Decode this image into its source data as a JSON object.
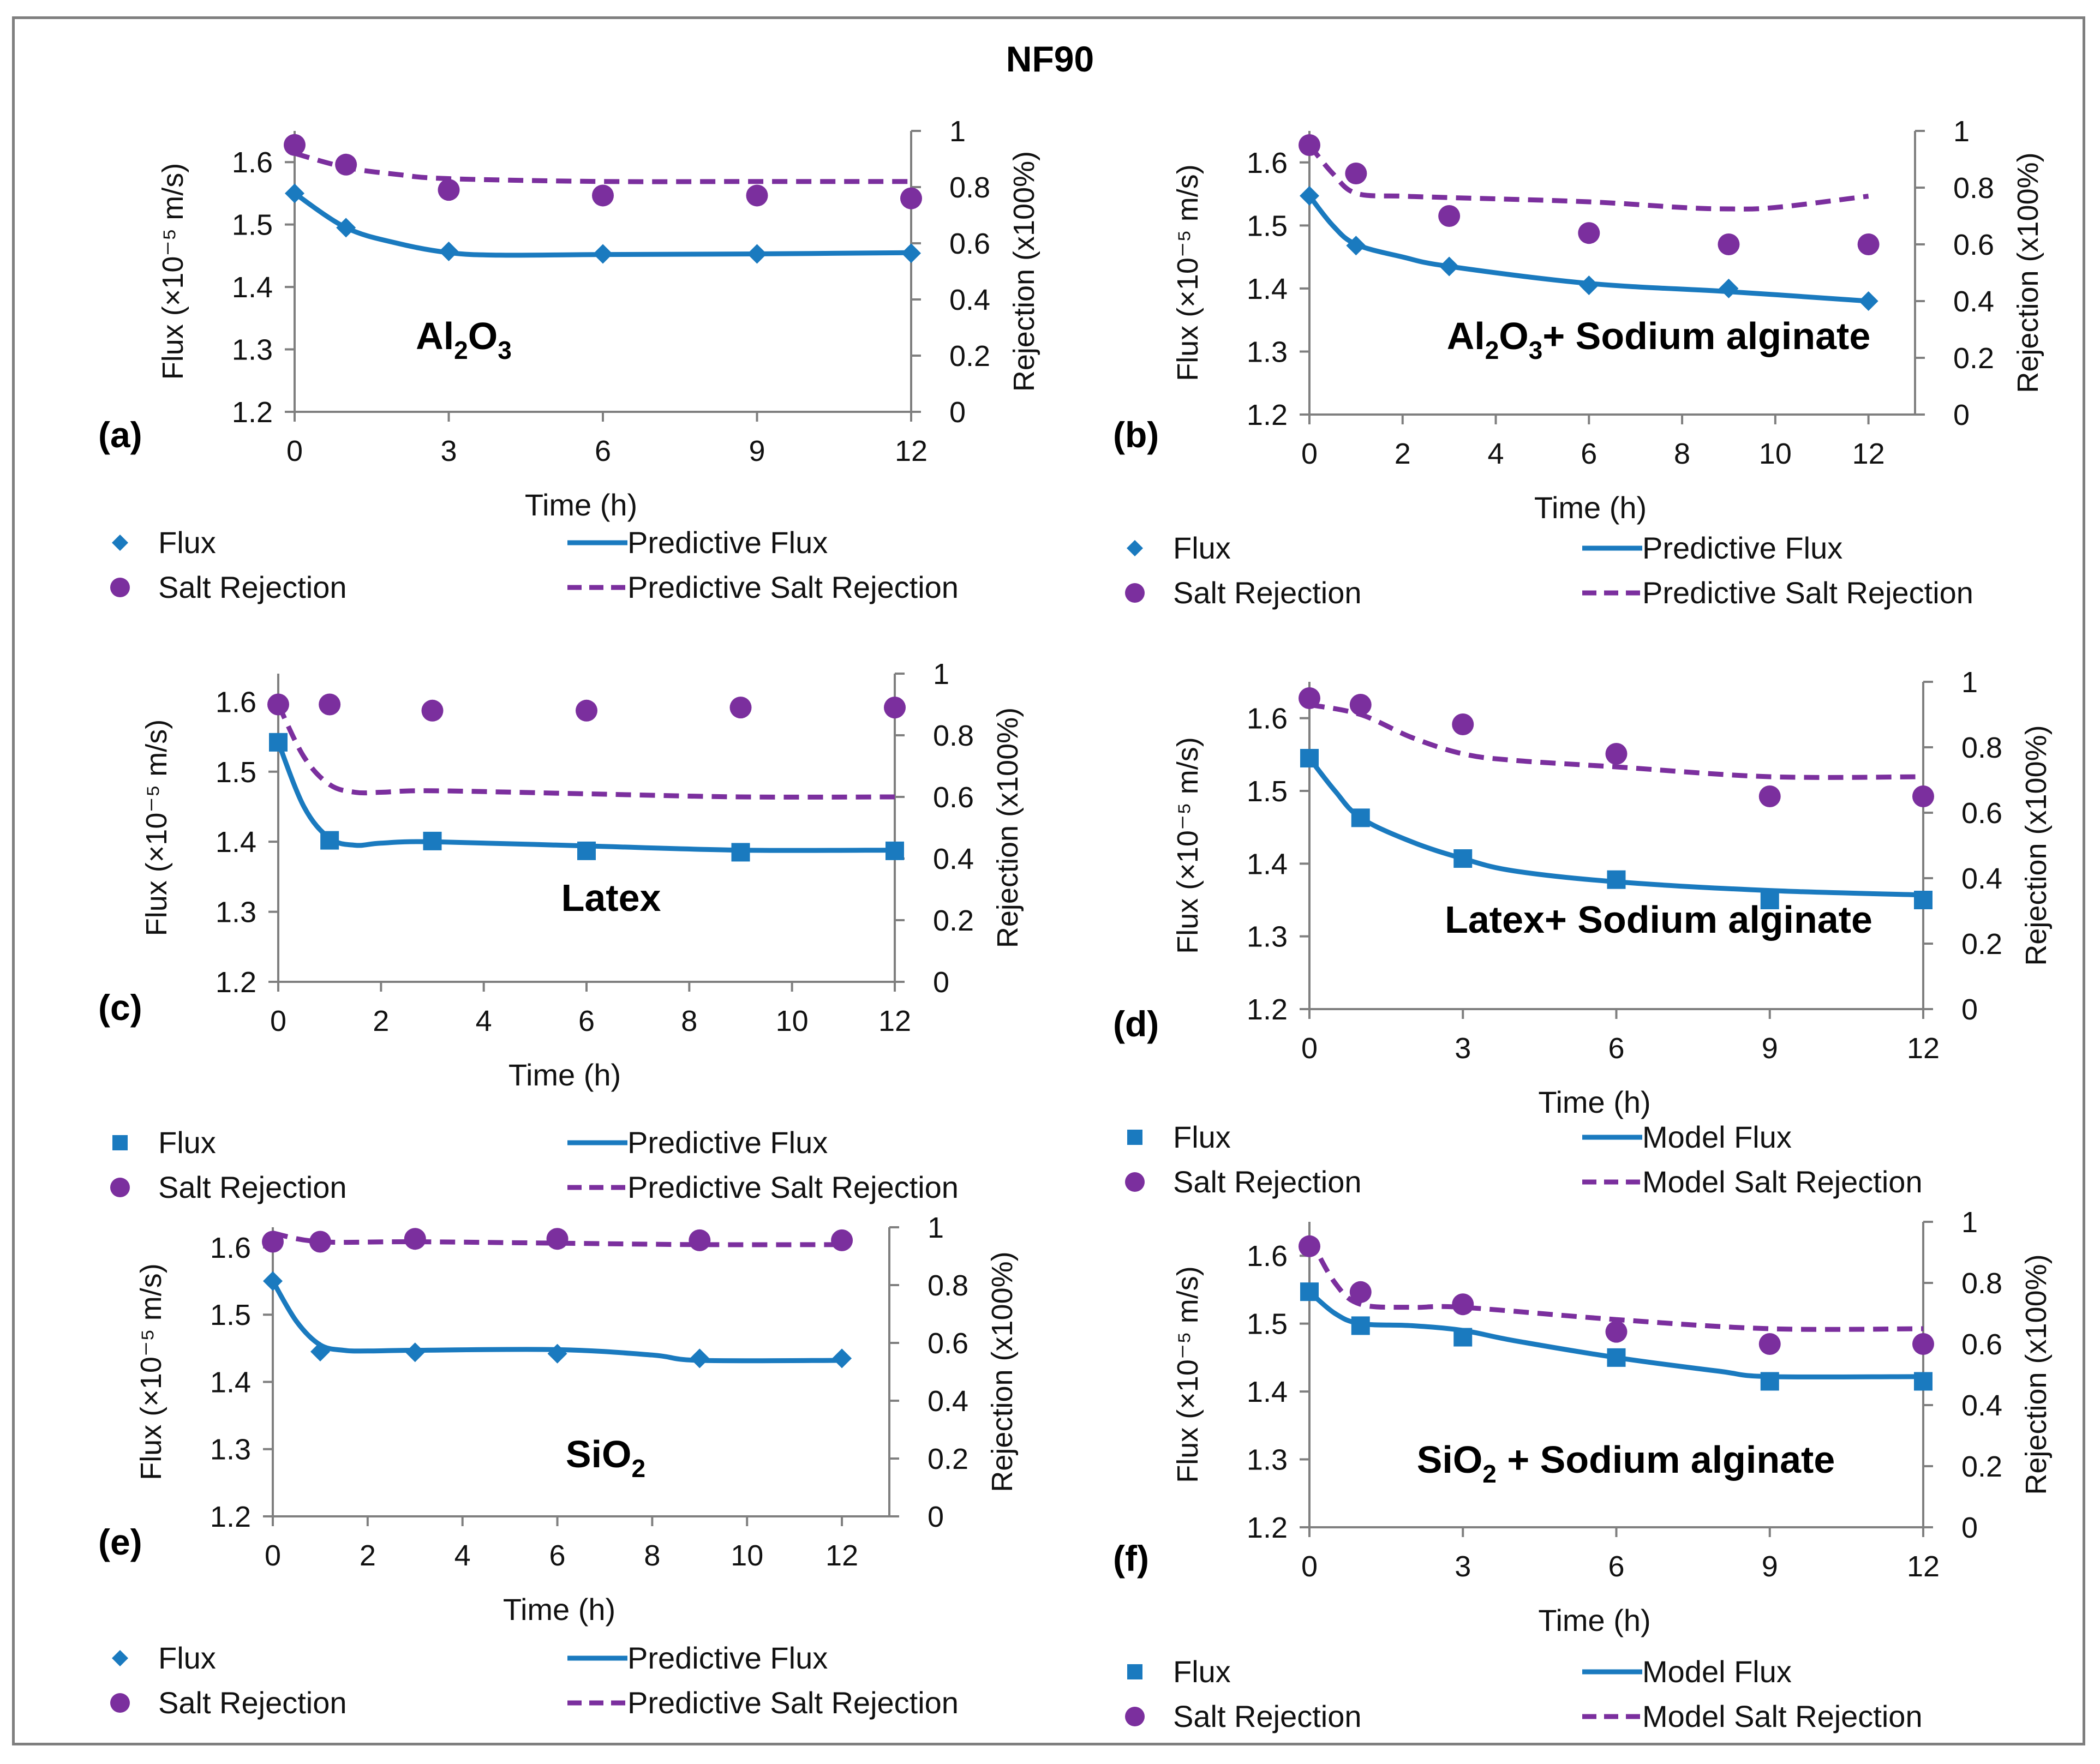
{
  "figure_title": "NF90",
  "colors": {
    "flux": "#1a7abf",
    "rejection": "#7b2f9e",
    "axis": "#7f7f7f"
  },
  "chart_data": [
    {
      "id": "a",
      "type": "scatter",
      "panel_label": "(a)",
      "inset_title": "Al2O3",
      "inset_title_parts": [
        "Al",
        "2",
        "O",
        "3"
      ],
      "xlabel": "Time (h)",
      "ylabel_left": "Flux (×10⁻⁵ m/s)",
      "ylabel_right": "Rejection (x100%)",
      "xlim": [
        0,
        12
      ],
      "xticks": [
        "0",
        "3",
        "6",
        "9",
        "12"
      ],
      "ylim_left": [
        1.2,
        1.65
      ],
      "yticks_left": [
        "1.2",
        "1.3",
        "1.4",
        "1.5",
        "1.6"
      ],
      "ylim_right": [
        0,
        1
      ],
      "yticks_right": [
        "0",
        "0.2",
        "0.4",
        "0.6",
        "0.8",
        "1"
      ],
      "flux_marker": "diamond",
      "series": [
        {
          "name": "Flux",
          "kind": "flux-points",
          "x": [
            0,
            1,
            3,
            6,
            9,
            12
          ],
          "y": [
            1.55,
            1.495,
            1.457,
            1.453,
            1.453,
            1.454
          ]
        },
        {
          "name": "Predictive Flux",
          "kind": "flux-line",
          "x": [
            0,
            1,
            2,
            3,
            4,
            6,
            9,
            12
          ],
          "y": [
            1.55,
            1.495,
            1.47,
            1.455,
            1.451,
            1.452,
            1.453,
            1.455
          ]
        },
        {
          "name": "Salt Rejection",
          "kind": "rej-points",
          "x": [
            0,
            1,
            3,
            6,
            9,
            12
          ],
          "y": [
            0.95,
            0.88,
            0.79,
            0.77,
            0.77,
            0.76
          ]
        },
        {
          "name": "Predictive Salt Rejection",
          "kind": "rej-line",
          "x": [
            0,
            1,
            2,
            3,
            6,
            9,
            12
          ],
          "y": [
            0.92,
            0.87,
            0.845,
            0.83,
            0.82,
            0.82,
            0.82
          ]
        }
      ],
      "legend": [
        "Flux",
        "Predictive Flux",
        "Salt Rejection",
        "Predictive Salt Rejection"
      ]
    },
    {
      "id": "b",
      "type": "scatter",
      "panel_label": "(b)",
      "inset_title": "Al2O3+ Sodium alginate",
      "inset_title_parts": [
        "Al",
        "2",
        "O",
        "3",
        "+ Sodium alginate"
      ],
      "xlabel": "Time (h)",
      "ylabel_left": "Flux (×10⁻⁵ m/s)",
      "ylabel_right": "Rejection (x100%)",
      "xlim": [
        0,
        13
      ],
      "xticks": [
        "0",
        "2",
        "4",
        "6",
        "8",
        "10",
        "12"
      ],
      "ylim_left": [
        1.2,
        1.65
      ],
      "yticks_left": [
        "1.2",
        "1.3",
        "1.4",
        "1.5",
        "1.6"
      ],
      "ylim_right": [
        0,
        1
      ],
      "yticks_right": [
        "0",
        "0.2",
        "0.4",
        "0.6",
        "0.8",
        "1"
      ],
      "flux_marker": "diamond",
      "series": [
        {
          "name": "Flux",
          "kind": "flux-points",
          "x": [
            0,
            1,
            3,
            6,
            9,
            12
          ],
          "y": [
            1.547,
            1.468,
            1.435,
            1.405,
            1.4,
            1.38
          ]
        },
        {
          "name": "Predictive Flux",
          "kind": "flux-line",
          "x": [
            0,
            0.5,
            1,
            2,
            3,
            6,
            9,
            12
          ],
          "y": [
            1.547,
            1.5,
            1.47,
            1.45,
            1.435,
            1.408,
            1.395,
            1.38
          ]
        },
        {
          "name": "Salt Rejection",
          "kind": "rej-points",
          "x": [
            0,
            1,
            3,
            6,
            9,
            12
          ],
          "y": [
            0.95,
            0.85,
            0.7,
            0.64,
            0.6,
            0.6
          ]
        },
        {
          "name": "Predictive Salt Rejection",
          "kind": "rej-line",
          "x": [
            0,
            0.5,
            1,
            2,
            3,
            6,
            8,
            9,
            10,
            12
          ],
          "y": [
            0.95,
            0.85,
            0.78,
            0.77,
            0.765,
            0.75,
            0.73,
            0.725,
            0.73,
            0.77
          ]
        }
      ],
      "legend": [
        "Flux",
        "Predictive Flux",
        "Salt Rejection",
        "Predictive Salt Rejection"
      ]
    },
    {
      "id": "c",
      "type": "scatter",
      "panel_label": "(c)",
      "inset_title": "Latex",
      "inset_title_parts": [
        "Latex"
      ],
      "xlabel": "Time (h)",
      "ylabel_left": "Flux (×10⁻⁵ m/s)",
      "ylabel_right": "Rejection (x100%)",
      "xlim": [
        0,
        12
      ],
      "xticks": [
        "0",
        "2",
        "4",
        "6",
        "8",
        "10",
        "12"
      ],
      "ylim_left": [
        1.2,
        1.64
      ],
      "yticks_left": [
        "1.2",
        "1.3",
        "1.4",
        "1.5",
        "1.6"
      ],
      "ylim_right": [
        0,
        1
      ],
      "yticks_right": [
        "0",
        "0.2",
        "0.4",
        "0.6",
        "0.8",
        "1"
      ],
      "flux_marker": "square",
      "series": [
        {
          "name": "Flux",
          "kind": "flux-points",
          "x": [
            0,
            1,
            3,
            6,
            9,
            12
          ],
          "y": [
            1.542,
            1.402,
            1.401,
            1.387,
            1.385,
            1.387
          ]
        },
        {
          "name": "Predictive Flux",
          "kind": "flux-line",
          "x": [
            0,
            0.5,
            1,
            1.5,
            2,
            3,
            6,
            9,
            12
          ],
          "y": [
            1.542,
            1.45,
            1.405,
            1.395,
            1.398,
            1.4,
            1.394,
            1.388,
            1.388
          ]
        },
        {
          "name": "Salt Rejection",
          "kind": "rej-points",
          "x": [
            0,
            1,
            3,
            6,
            9,
            12
          ],
          "y": [
            0.9,
            0.9,
            0.88,
            0.88,
            0.89,
            0.89
          ]
        },
        {
          "name": "Predictive Salt Rejection",
          "kind": "rej-line",
          "x": [
            0,
            0.5,
            1,
            1.5,
            2,
            3,
            6,
            9,
            12
          ],
          "y": [
            0.9,
            0.73,
            0.64,
            0.615,
            0.615,
            0.62,
            0.61,
            0.6,
            0.6
          ]
        }
      ],
      "legend": [
        "Flux",
        "Predictive Flux",
        "Salt Rejection",
        "Predictive Salt Rejection"
      ]
    },
    {
      "id": "d",
      "type": "scatter",
      "panel_label": "(d)",
      "inset_title": "Latex+ Sodium alginate",
      "inset_title_parts": [
        "Latex+ Sodium alginate"
      ],
      "xlabel": "Time (h)",
      "ylabel_left": "Flux (×10⁻⁵ m/s)",
      "ylabel_right": "Rejection (x100%)",
      "xlim": [
        0,
        12
      ],
      "xticks": [
        "0",
        "3",
        "6",
        "9",
        "12"
      ],
      "ylim_left": [
        1.2,
        1.65
      ],
      "yticks_left": [
        "1.2",
        "1.3",
        "1.4",
        "1.5",
        "1.6"
      ],
      "ylim_right": [
        0,
        1
      ],
      "yticks_right": [
        "0",
        "0.2",
        "0.4",
        "0.6",
        "0.8",
        "1"
      ],
      "flux_marker": "square",
      "series": [
        {
          "name": "Flux",
          "kind": "flux-points",
          "x": [
            0,
            1,
            3,
            6,
            9,
            12
          ],
          "y": [
            1.545,
            1.463,
            1.407,
            1.378,
            1.35,
            1.35
          ]
        },
        {
          "name": "Predictive Flux",
          "kind": "flux-line",
          "x": [
            0,
            0.5,
            1,
            2,
            3,
            4,
            6,
            9,
            12
          ],
          "y": [
            1.545,
            1.5,
            1.463,
            1.43,
            1.407,
            1.39,
            1.375,
            1.363,
            1.357
          ]
        },
        {
          "name": "Salt Rejection",
          "kind": "rej-points",
          "x": [
            0,
            1,
            3,
            6,
            9,
            12
          ],
          "y": [
            0.95,
            0.93,
            0.87,
            0.78,
            0.65,
            0.65
          ]
        },
        {
          "name": "Predictive Salt Rejection",
          "kind": "rej-line",
          "x": [
            0,
            1,
            2,
            3,
            4,
            6,
            9,
            12
          ],
          "y": [
            0.93,
            0.9,
            0.83,
            0.78,
            0.76,
            0.74,
            0.71,
            0.71
          ]
        }
      ],
      "legend": [
        "Flux",
        "Model Flux",
        "Salt Rejection",
        "Model Salt Rejection"
      ]
    },
    {
      "id": "e",
      "type": "scatter",
      "panel_label": "(e)",
      "inset_title": "SiO2",
      "inset_title_parts": [
        "SiO",
        "2"
      ],
      "xlabel": "Time (h)",
      "ylabel_left": "Flux (×10⁻⁵ m/s)",
      "ylabel_right": "Rejection (x100%)",
      "xlim": [
        0,
        13
      ],
      "xticks": [
        "0",
        "2",
        "4",
        "6",
        "8",
        "10",
        "12"
      ],
      "ylim_left": [
        1.2,
        1.63
      ],
      "yticks_left": [
        "1.2",
        "1.3",
        "1.4",
        "1.5",
        "1.6"
      ],
      "ylim_right": [
        0,
        1
      ],
      "yticks_right": [
        "0",
        "0.2",
        "0.4",
        "0.6",
        "0.8",
        "1"
      ],
      "flux_marker": "diamond",
      "series": [
        {
          "name": "Flux",
          "kind": "flux-points",
          "x": [
            0,
            1,
            3,
            6,
            9,
            12
          ],
          "y": [
            1.55,
            1.445,
            1.444,
            1.442,
            1.435,
            1.435
          ]
        },
        {
          "name": "Predictive Flux",
          "kind": "flux-line",
          "x": [
            0,
            0.5,
            1,
            1.5,
            2,
            3,
            6,
            8,
            9,
            12
          ],
          "y": [
            1.55,
            1.49,
            1.455,
            1.447,
            1.446,
            1.447,
            1.448,
            1.44,
            1.432,
            1.432
          ]
        },
        {
          "name": "Salt Rejection",
          "kind": "rej-points",
          "x": [
            0,
            1,
            3,
            6,
            9,
            12
          ],
          "y": [
            0.95,
            0.95,
            0.96,
            0.96,
            0.955,
            0.955
          ]
        },
        {
          "name": "Predictive Salt Rejection",
          "kind": "rej-line",
          "x": [
            0,
            1,
            3,
            6,
            9,
            12
          ],
          "y": [
            0.98,
            0.95,
            0.95,
            0.945,
            0.94,
            0.94
          ]
        }
      ],
      "legend": [
        "Flux",
        "Predictive Flux",
        "Salt Rejection",
        "Predictive Salt Rejection"
      ]
    },
    {
      "id": "f",
      "type": "scatter",
      "panel_label": "(f)",
      "inset_title": "SiO2 + Sodium alginate",
      "inset_title_parts": [
        "SiO",
        "2",
        " + Sodium alginate"
      ],
      "xlabel": "Time (h)",
      "ylabel_left": "Flux (×10⁻⁵ m/s)",
      "ylabel_right": "Rejection (x100%)",
      "xlim": [
        0,
        12
      ],
      "xticks": [
        "0",
        "3",
        "6",
        "9",
        "12"
      ],
      "ylim_left": [
        1.2,
        1.65
      ],
      "yticks_left": [
        "1.2",
        "1.3",
        "1.4",
        "1.5",
        "1.6"
      ],
      "ylim_right": [
        0,
        1
      ],
      "yticks_right": [
        "0",
        "0.2",
        "0.4",
        "0.6",
        "0.8",
        "1"
      ],
      "flux_marker": "square",
      "series": [
        {
          "name": "Flux",
          "kind": "flux-points",
          "x": [
            0,
            1,
            3,
            6,
            9,
            12
          ],
          "y": [
            1.547,
            1.497,
            1.48,
            1.45,
            1.415,
            1.415
          ]
        },
        {
          "name": "Predictive Flux",
          "kind": "flux-line",
          "x": [
            0,
            0.5,
            1,
            2,
            3,
            4,
            6,
            8,
            9,
            12
          ],
          "y": [
            1.547,
            1.515,
            1.5,
            1.497,
            1.49,
            1.475,
            1.45,
            1.43,
            1.422,
            1.422
          ]
        },
        {
          "name": "Salt Rejection",
          "kind": "rej-points",
          "x": [
            0,
            1,
            3,
            6,
            9,
            12
          ],
          "y": [
            0.92,
            0.77,
            0.73,
            0.64,
            0.6,
            0.6
          ]
        },
        {
          "name": "Predictive Salt Rejection",
          "kind": "rej-line",
          "x": [
            0,
            0.5,
            1,
            2,
            3,
            6,
            9,
            12
          ],
          "y": [
            0.95,
            0.8,
            0.73,
            0.72,
            0.72,
            0.68,
            0.65,
            0.65
          ]
        }
      ],
      "legend": [
        "Flux",
        "Model Flux",
        "Salt Rejection",
        "Model Salt Rejection"
      ]
    }
  ]
}
